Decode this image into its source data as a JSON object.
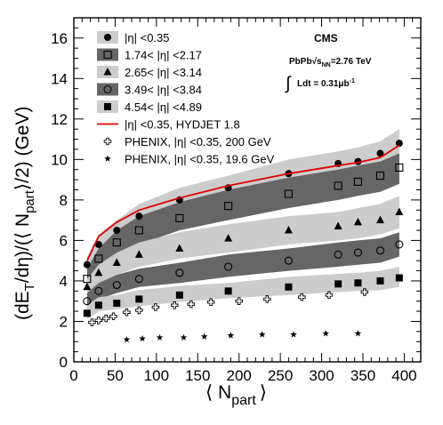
{
  "chart_data": {
    "type": "scatter",
    "xlabel_main": "⟨ N",
    "xlabel_sub": "part",
    "xlabel_end": "⟩",
    "ylabel_a": "(dE",
    "ylabel_b": "T",
    "ylabel_c": "/dη)/(⟨ N",
    "ylabel_d": "part",
    "ylabel_e": "⟩/2) (GeV)",
    "xlim": [
      0,
      420
    ],
    "ylim": [
      0,
      17
    ],
    "x_ticks": [
      0,
      50,
      100,
      150,
      200,
      250,
      300,
      350,
      400
    ],
    "y_ticks": [
      0,
      2,
      4,
      6,
      8,
      10,
      12,
      14,
      16
    ],
    "annotations": {
      "experiment": "CMS",
      "system_a": "PbPb",
      "system_b": "√s",
      "system_c": "NN",
      "system_d": "=2.76 TeV",
      "lumi_a": "∫",
      "lumi_b": "Ldt = 0.31μb",
      "lumi_c": "-1"
    },
    "legend": [
      {
        "label": "|η| <0.35",
        "marker": "circle-filled",
        "band": "#cccccc"
      },
      {
        "label": "1.74< |η| <2.17",
        "marker": "square-open",
        "band": "#666666"
      },
      {
        "label": "2.65< |η| <3.14",
        "marker": "triangle-filled",
        "band": "#cccccc"
      },
      {
        "label": "3.49< |η| <3.84",
        "marker": "circle-open",
        "band": "#666666"
      },
      {
        "label": "4.54< |η| <4.89",
        "marker": "square-filled",
        "band": "#cccccc"
      },
      {
        "label": "|η| <0.35, HYDJET 1.8",
        "marker": "line-red"
      },
      {
        "label": "PHENIX, |η| <0.35, 200 GeV",
        "marker": "cross-open"
      },
      {
        "label": "PHENIX, |η| <0.35, 19.6 GeV",
        "marker": "star"
      }
    ],
    "series": [
      {
        "marker": "circle-filled",
        "band_color": "#cccccc",
        "x": [
          16,
          30,
          52,
          79,
          128,
          187,
          260,
          320,
          344,
          371,
          394
        ],
        "y": [
          4.8,
          5.8,
          6.5,
          7.2,
          8.0,
          8.6,
          9.3,
          9.8,
          9.9,
          10.3,
          10.8
        ],
        "band_low": [
          4.3,
          5.3,
          6.0,
          6.6,
          7.3,
          7.95,
          8.6,
          9.0,
          9.2,
          9.5,
          10.0
        ],
        "band_high": [
          5.2,
          6.3,
          7.0,
          7.8,
          8.6,
          9.2,
          10.0,
          10.4,
          10.6,
          10.9,
          11.5
        ]
      },
      {
        "marker": "square-open",
        "band_color": "#666666",
        "x": [
          16,
          30,
          52,
          79,
          128,
          187,
          260,
          320,
          344,
          371,
          394
        ],
        "y": [
          4.1,
          5.1,
          5.9,
          6.5,
          7.1,
          7.7,
          8.3,
          8.7,
          8.9,
          9.2,
          9.6
        ],
        "band_low": [
          3.6,
          4.5,
          5.2,
          5.8,
          6.5,
          7.0,
          7.6,
          8.0,
          8.2,
          8.4,
          8.8
        ],
        "band_high": [
          4.6,
          5.6,
          6.5,
          7.2,
          7.9,
          8.5,
          9.1,
          9.5,
          9.7,
          9.9,
          10.3
        ]
      },
      {
        "marker": "triangle-filled",
        "band_color": "#cccccc",
        "x": [
          16,
          30,
          52,
          79,
          128,
          187,
          260,
          320,
          344,
          371,
          394
        ],
        "y": [
          3.7,
          4.4,
          4.9,
          5.3,
          5.6,
          6.1,
          6.5,
          6.7,
          6.9,
          7.0,
          7.4
        ],
        "band_low": [
          3.3,
          3.9,
          4.3,
          4.7,
          5.1,
          5.4,
          5.8,
          6.0,
          6.1,
          6.3,
          6.6
        ],
        "band_high": [
          4.1,
          4.8,
          5.4,
          5.9,
          6.4,
          6.8,
          7.2,
          7.4,
          7.6,
          7.8,
          8.2
        ]
      },
      {
        "marker": "circle-open",
        "band_color": "#666666",
        "x": [
          16,
          30,
          52,
          79,
          128,
          187,
          260,
          320,
          344,
          371,
          394
        ],
        "y": [
          3.0,
          3.5,
          3.8,
          4.1,
          4.4,
          4.7,
          5.0,
          5.3,
          5.4,
          5.5,
          5.8
        ],
        "band_low": [
          2.6,
          3.1,
          3.4,
          3.7,
          3.9,
          4.2,
          4.5,
          4.7,
          4.8,
          4.9,
          5.2
        ],
        "band_high": [
          3.4,
          3.9,
          4.3,
          4.6,
          4.9,
          5.3,
          5.6,
          5.9,
          6.0,
          6.1,
          6.4
        ]
      },
      {
        "marker": "square-filled",
        "band_color": "#cccccc",
        "x": [
          16,
          30,
          52,
          79,
          128,
          187,
          260,
          320,
          344,
          371,
          394
        ],
        "y": [
          2.4,
          2.8,
          2.9,
          3.1,
          3.3,
          3.5,
          3.7,
          3.85,
          3.9,
          4.0,
          4.15
        ],
        "band_low": [
          2.1,
          2.5,
          2.6,
          2.75,
          2.95,
          3.15,
          3.3,
          3.45,
          3.5,
          3.55,
          3.7
        ],
        "band_high": [
          2.8,
          3.2,
          3.3,
          3.55,
          3.75,
          3.9,
          4.2,
          4.35,
          4.4,
          4.5,
          4.7
        ]
      },
      {
        "marker": "line-red",
        "x": [
          16,
          30,
          52,
          79,
          128,
          187,
          260,
          320,
          344,
          371,
          394
        ],
        "y": [
          5.0,
          6.2,
          6.9,
          7.5,
          8.1,
          8.7,
          9.3,
          9.7,
          9.85,
          10.1,
          10.7
        ]
      },
      {
        "marker": "cross-open",
        "x": [
          22,
          30,
          39,
          48,
          64,
          79,
          99,
          122,
          142,
          166,
          200,
          234,
          276,
          309,
          352
        ],
        "y": [
          1.95,
          2.05,
          2.15,
          2.25,
          2.45,
          2.55,
          2.7,
          2.8,
          2.85,
          2.95,
          3.0,
          3.1,
          3.2,
          3.3,
          3.45
        ]
      },
      {
        "marker": "star",
        "x": [
          64,
          83,
          104,
          133,
          158,
          190,
          228,
          266,
          305,
          344
        ],
        "y": [
          1.1,
          1.15,
          1.2,
          1.2,
          1.25,
          1.3,
          1.35,
          1.35,
          1.4,
          1.4
        ]
      }
    ]
  }
}
